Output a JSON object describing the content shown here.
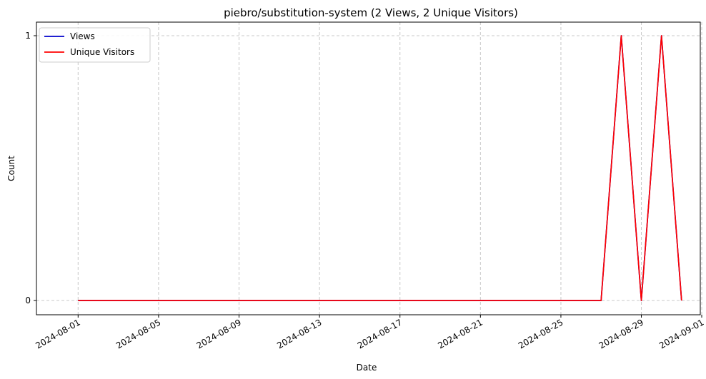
{
  "chart_data": {
    "type": "line",
    "title": "piebro/substitution-system (2 Views, 2 Unique Visitors)",
    "xlabel": "Date",
    "ylabel": "Count",
    "x": [
      "2024-08-01",
      "2024-08-02",
      "2024-08-03",
      "2024-08-04",
      "2024-08-05",
      "2024-08-06",
      "2024-08-07",
      "2024-08-08",
      "2024-08-09",
      "2024-08-10",
      "2024-08-11",
      "2024-08-12",
      "2024-08-13",
      "2024-08-14",
      "2024-08-15",
      "2024-08-16",
      "2024-08-17",
      "2024-08-18",
      "2024-08-19",
      "2024-08-20",
      "2024-08-21",
      "2024-08-22",
      "2024-08-23",
      "2024-08-24",
      "2024-08-25",
      "2024-08-26",
      "2024-08-27",
      "2024-08-28",
      "2024-08-29",
      "2024-08-30",
      "2024-08-31"
    ],
    "series": [
      {
        "name": "Views",
        "color": "#0000cc",
        "values": [
          0,
          0,
          0,
          0,
          0,
          0,
          0,
          0,
          0,
          0,
          0,
          0,
          0,
          0,
          0,
          0,
          0,
          0,
          0,
          0,
          0,
          0,
          0,
          0,
          0,
          0,
          0,
          1,
          0,
          1,
          0
        ]
      },
      {
        "name": "Unique Visitors",
        "color": "#ff0000",
        "values": [
          0,
          0,
          0,
          0,
          0,
          0,
          0,
          0,
          0,
          0,
          0,
          0,
          0,
          0,
          0,
          0,
          0,
          0,
          0,
          0,
          0,
          0,
          0,
          0,
          0,
          0,
          0,
          1,
          0,
          1,
          0
        ]
      }
    ],
    "x_ticks": [
      "2024-08-01",
      "2024-08-05",
      "2024-08-09",
      "2024-08-13",
      "2024-08-17",
      "2024-08-21",
      "2024-08-25",
      "2024-08-29",
      "2024-09-01"
    ],
    "y_ticks": [
      "0",
      "1"
    ],
    "xlim": [
      "2024-07-30",
      "2024-09-01"
    ],
    "ylim": [
      0,
      1
    ],
    "grid": true,
    "legend_position": "top-left"
  }
}
